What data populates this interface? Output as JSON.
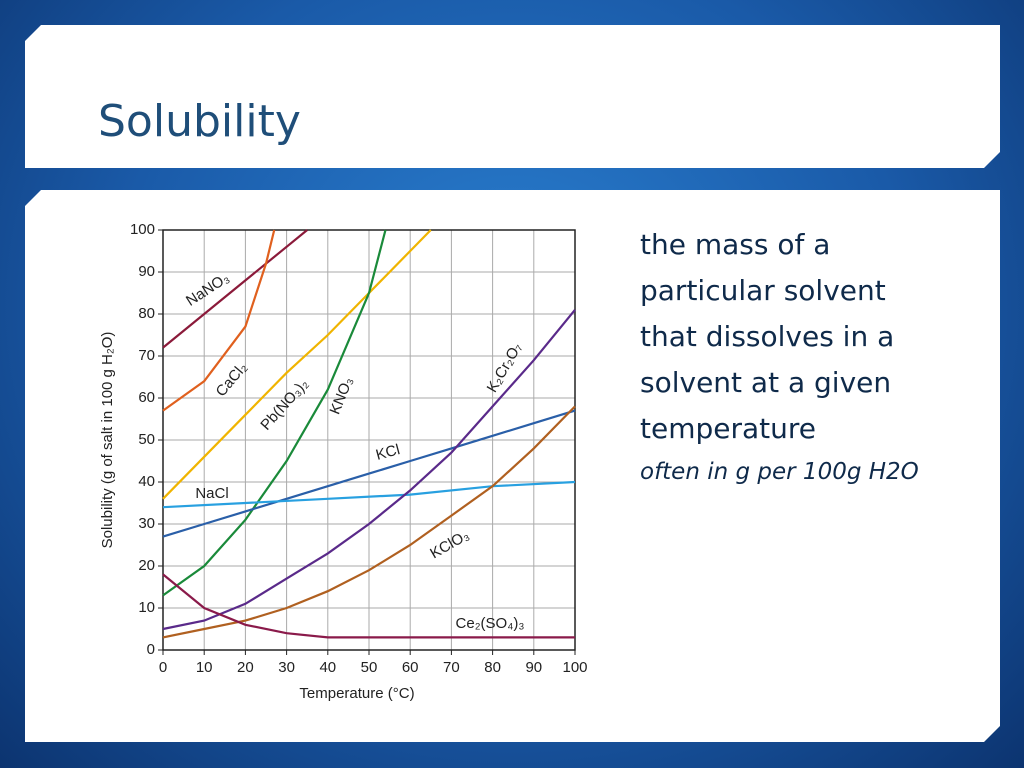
{
  "slide": {
    "title": "Solubility",
    "lines": [
      "the mass of a",
      "particular solvent",
      "that dissolves in a",
      "solvent at a given",
      "temperature"
    ],
    "note": "often in g per 100g H2O"
  },
  "chart_data": {
    "type": "line",
    "xlabel": "Temperature (°C)",
    "ylabel": "Solubility (g of salt in 100 g H₂O)",
    "xlim": [
      0,
      100
    ],
    "ylim": [
      0,
      100
    ],
    "xticks": [
      0,
      10,
      20,
      30,
      40,
      50,
      60,
      70,
      80,
      90,
      100
    ],
    "yticks": [
      0,
      10,
      20,
      30,
      40,
      50,
      60,
      70,
      80,
      90,
      100
    ],
    "grid": true,
    "series": [
      {
        "name": "NaNO₃",
        "color": "#8b1a3a",
        "x": [
          0,
          10,
          20,
          30,
          35
        ],
        "values": [
          72,
          80,
          88,
          96,
          100
        ]
      },
      {
        "name": "CaCl₂",
        "color": "#e0601e",
        "x": [
          0,
          10,
          20,
          25,
          27
        ],
        "values": [
          57,
          64,
          77,
          92,
          100
        ]
      },
      {
        "name": "Pb(NO₃)₂",
        "color": "#f0b400",
        "x": [
          0,
          10,
          20,
          30,
          40,
          50,
          60,
          65
        ],
        "values": [
          36,
          46,
          56,
          66,
          75,
          85,
          95,
          100
        ]
      },
      {
        "name": "KNO₃",
        "color": "#1a8a3a",
        "x": [
          0,
          10,
          20,
          30,
          40,
          50,
          54
        ],
        "values": [
          13,
          20,
          31,
          45,
          62,
          85,
          100
        ]
      },
      {
        "name": "KCl",
        "color": "#2a5fa8",
        "x": [
          0,
          10,
          20,
          30,
          40,
          50,
          60,
          70,
          80,
          90,
          100
        ],
        "values": [
          27,
          30,
          33,
          36,
          39,
          42,
          45,
          48,
          51,
          54,
          57
        ]
      },
      {
        "name": "NaCl",
        "color": "#28a0e0",
        "x": [
          0,
          20,
          40,
          60,
          80,
          100
        ],
        "values": [
          34,
          35,
          36,
          37,
          39,
          40
        ]
      },
      {
        "name": "K₂Cr₂O₇",
        "color": "#5a2a8a",
        "x": [
          0,
          10,
          20,
          30,
          40,
          50,
          60,
          70,
          80,
          90,
          100
        ],
        "values": [
          5,
          7,
          11,
          17,
          23,
          30,
          38,
          47,
          58,
          69,
          81
        ]
      },
      {
        "name": "KClO₃",
        "color": "#b06020",
        "x": [
          0,
          10,
          20,
          30,
          40,
          50,
          60,
          70,
          80,
          90,
          100
        ],
        "values": [
          3,
          5,
          7,
          10,
          14,
          19,
          25,
          32,
          39,
          48,
          58
        ]
      },
      {
        "name": "Ce₂(SO₄)₃",
        "color": "#8a1a4a",
        "x": [
          0,
          10,
          20,
          30,
          40,
          100
        ],
        "values": [
          18,
          10,
          6,
          4,
          3,
          3
        ]
      }
    ]
  }
}
